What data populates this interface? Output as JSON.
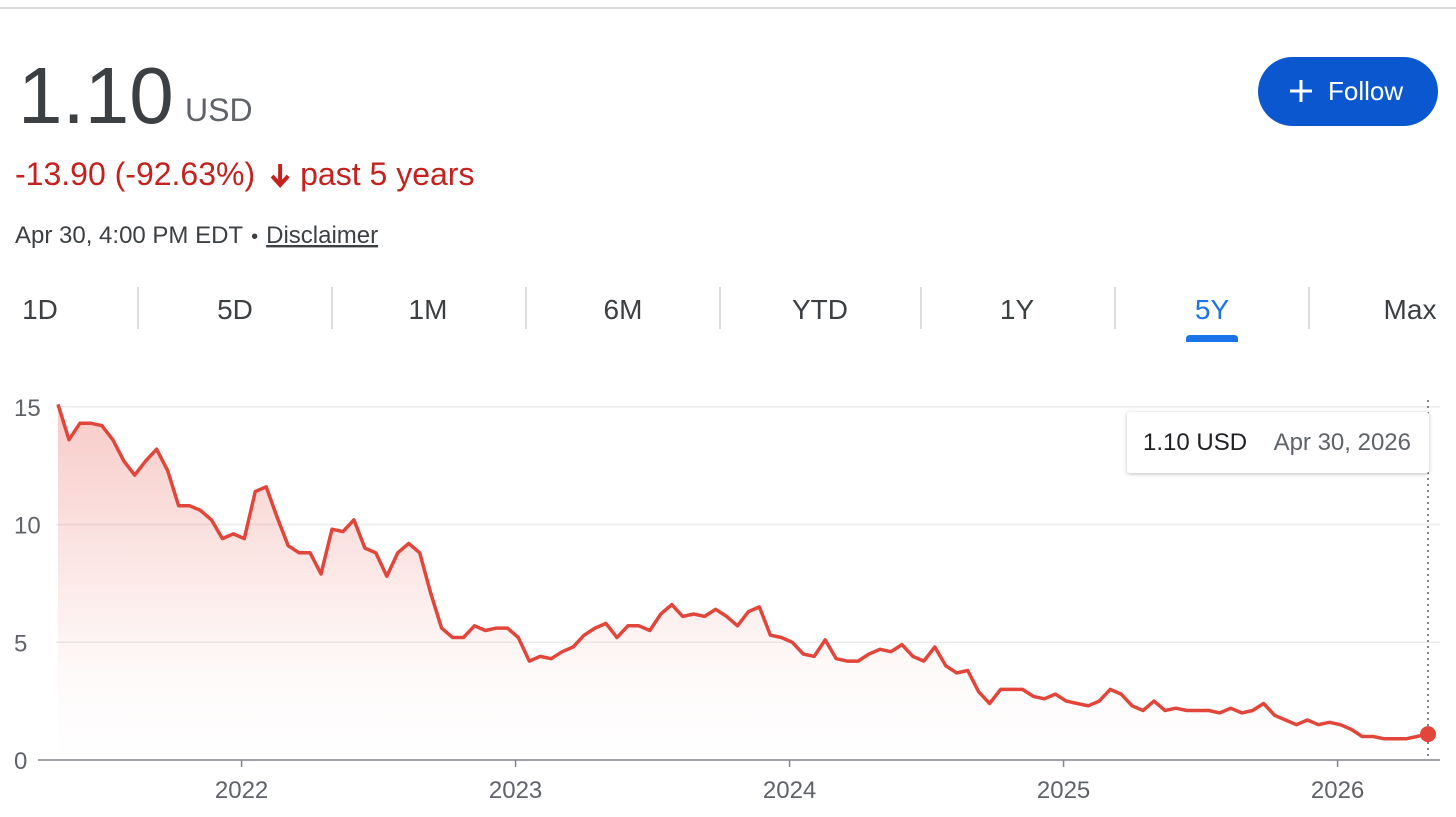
{
  "header": {
    "price": "1.10",
    "currency": "USD",
    "change": "-13.90 (-92.63%)",
    "period": "past 5 years",
    "timestamp": "Apr 30, 4:00 PM EDT",
    "separator": "•",
    "disclaimer": "Disclaimer",
    "follow_button": "Follow"
  },
  "tabs": [
    {
      "label": "1D",
      "selected": false
    },
    {
      "label": "5D",
      "selected": false
    },
    {
      "label": "1M",
      "selected": false
    },
    {
      "label": "6M",
      "selected": false
    },
    {
      "label": "YTD",
      "selected": false
    },
    {
      "label": "1Y",
      "selected": false
    },
    {
      "label": "5Y",
      "selected": true
    },
    {
      "label": "Max",
      "selected": false
    }
  ],
  "chart_data": {
    "type": "line",
    "color": "#e2463a",
    "area": true,
    "grid": true,
    "x": [
      2021.33,
      2021.37,
      2021.41,
      2021.45,
      2021.49,
      2021.53,
      2021.57,
      2021.61,
      2021.65,
      2021.69,
      2021.73,
      2021.77,
      2021.81,
      2021.85,
      2021.89,
      2021.93,
      2021.97,
      2022.01,
      2022.05,
      2022.09,
      2022.13,
      2022.17,
      2022.21,
      2022.25,
      2022.29,
      2022.33,
      2022.37,
      2022.41,
      2022.45,
      2022.49,
      2022.53,
      2022.57,
      2022.61,
      2022.65,
      2022.69,
      2022.73,
      2022.77,
      2022.81,
      2022.85,
      2022.89,
      2022.93,
      2022.97,
      2023.01,
      2023.05,
      2023.09,
      2023.13,
      2023.17,
      2023.21,
      2023.25,
      2023.29,
      2023.33,
      2023.37,
      2023.41,
      2023.45,
      2023.49,
      2023.53,
      2023.57,
      2023.61,
      2023.65,
      2023.69,
      2023.73,
      2023.77,
      2023.81,
      2023.85,
      2023.89,
      2023.93,
      2023.97,
      2024.01,
      2024.05,
      2024.09,
      2024.13,
      2024.17,
      2024.21,
      2024.25,
      2024.29,
      2024.33,
      2024.37,
      2024.41,
      2024.45,
      2024.49,
      2024.53,
      2024.57,
      2024.61,
      2024.65,
      2024.69,
      2024.73,
      2024.77,
      2024.81,
      2024.85,
      2024.89,
      2024.93,
      2024.97,
      2025.01,
      2025.05,
      2025.09,
      2025.13,
      2025.17,
      2025.21,
      2025.25,
      2025.29,
      2025.33,
      2025.37,
      2025.41,
      2025.45,
      2025.49,
      2025.53,
      2025.57,
      2025.61,
      2025.65,
      2025.69,
      2025.73,
      2025.77,
      2025.81,
      2025.85,
      2025.89,
      2025.93,
      2025.97,
      2026.01,
      2026.05,
      2026.09,
      2026.13,
      2026.17,
      2026.21,
      2026.25,
      2026.29,
      2026.33
    ],
    "values": [
      15.1,
      13.6,
      14.3,
      14.3,
      14.2,
      13.6,
      12.7,
      12.1,
      12.7,
      13.2,
      12.3,
      10.8,
      10.8,
      10.6,
      10.2,
      9.4,
      9.6,
      9.4,
      11.4,
      11.6,
      10.3,
      9.1,
      8.8,
      8.8,
      7.9,
      9.8,
      9.7,
      10.2,
      9.0,
      8.8,
      7.8,
      8.8,
      9.2,
      8.8,
      7.1,
      5.6,
      5.2,
      5.2,
      5.7,
      5.5,
      5.6,
      5.6,
      5.2,
      4.2,
      4.4,
      4.3,
      4.6,
      4.8,
      5.3,
      5.6,
      5.8,
      5.2,
      5.7,
      5.7,
      5.5,
      6.2,
      6.6,
      6.1,
      6.2,
      6.1,
      6.4,
      6.1,
      5.7,
      6.3,
      6.5,
      5.3,
      5.2,
      5.0,
      4.5,
      4.4,
      5.1,
      4.3,
      4.2,
      4.2,
      4.5,
      4.7,
      4.6,
      4.9,
      4.4,
      4.2,
      4.8,
      4.0,
      3.7,
      3.8,
      2.9,
      2.4,
      3.0,
      3.0,
      3.0,
      2.7,
      2.6,
      2.8,
      2.5,
      2.4,
      2.3,
      2.5,
      3.0,
      2.8,
      2.3,
      2.1,
      2.5,
      2.1,
      2.2,
      2.1,
      2.1,
      2.1,
      2.0,
      2.2,
      2.0,
      2.1,
      2.4,
      1.9,
      1.7,
      1.5,
      1.7,
      1.5,
      1.6,
      1.5,
      1.3,
      1.0,
      1.0,
      0.9,
      0.9,
      0.9,
      1.0,
      1.1
    ],
    "xlim": [
      2021.33,
      2026.33
    ],
    "xticks": [
      2022,
      2023,
      2024,
      2025,
      2026
    ],
    "ylim": [
      0,
      15.5
    ],
    "yticks": [
      0,
      5,
      10,
      15
    ],
    "tooltip": {
      "value": "1.10 USD",
      "date": "Apr 30, 2026"
    }
  }
}
